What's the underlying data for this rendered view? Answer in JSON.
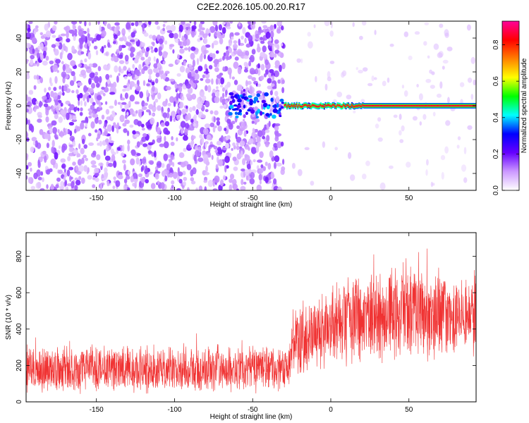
{
  "chart_data": [
    {
      "type": "heatmap",
      "title": "C2E2.2026.105.00.20.R17",
      "xlabel": "Height of straight line (km)",
      "ylabel": "Frequency (Hz)",
      "xlim": [
        -195,
        93
      ],
      "ylim": [
        -50,
        50
      ],
      "xticks": [
        -150,
        -100,
        -50,
        0,
        50
      ],
      "yticks": [
        -40,
        -20,
        0,
        20,
        40
      ],
      "colorbar": {
        "label": "Normalized spectral amplitude",
        "range": [
          0,
          0.93
        ],
        "ticks": [
          "0.0",
          "0.2",
          "0.4",
          "0.6",
          "0.8"
        ],
        "colors": [
          "#ffffff",
          "#cc99ff",
          "#6600ff",
          "#0000ff",
          "#00ffff",
          "#00ff00",
          "#ffff00",
          "#ff8000",
          "#ff0000",
          "#ff0099"
        ]
      },
      "noise_region": {
        "x_from": -195,
        "x_to": -30,
        "freq_from": -50,
        "freq_to": 50,
        "amplitude": 0.15
      },
      "signal_trace": {
        "x_from": -65,
        "x_to": 93,
        "freq": 0,
        "peak_amplitude": 0.9
      }
    },
    {
      "type": "line",
      "xlabel": "Height of straight line (km)",
      "ylabel": "SNR (10 * v/v)",
      "xlim": [
        -195,
        93
      ],
      "ylim": [
        0,
        930
      ],
      "xticks": [
        -150,
        -100,
        -50,
        0,
        50
      ],
      "yticks": [
        0,
        200,
        400,
        600,
        800
      ],
      "series": [
        {
          "name": "SNR",
          "color": "#f03232",
          "envelope": [
            {
              "x": -195,
              "mean": 180,
              "spread": 140
            },
            {
              "x": -30,
              "mean": 180,
              "spread": 140
            },
            {
              "x": -20,
              "mean": 330,
              "spread": 200
            },
            {
              "x": 0,
              "mean": 420,
              "spread": 260
            },
            {
              "x": 50,
              "mean": 500,
              "spread": 280
            },
            {
              "x": 93,
              "mean": 470,
              "spread": 260
            }
          ]
        }
      ]
    }
  ]
}
